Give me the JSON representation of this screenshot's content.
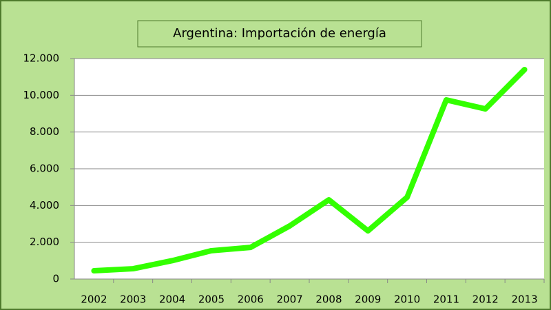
{
  "chart_data": {
    "type": "line",
    "title": "Argentina: Importación de energía",
    "categories": [
      "2002",
      "2003",
      "2004",
      "2005",
      "2006",
      "2007",
      "2008",
      "2009",
      "2010",
      "2011",
      "2012",
      "2013"
    ],
    "series": [
      {
        "name": "Importación de energía",
        "color": "#33ff00",
        "values": [
          450,
          560,
          1000,
          1540,
          1720,
          2890,
          4310,
          2620,
          4450,
          9750,
          9260,
          11400
        ]
      }
    ],
    "ylim": [
      0,
      12000
    ],
    "yticks": [
      0,
      {
        "value": 2000,
        "label": "2.000"
      },
      {
        "value": 4000,
        "label": "4.000"
      },
      {
        "value": 6000,
        "label": "6.000"
      },
      {
        "value": 8000,
        "label": "8.000"
      },
      {
        "value": 10000,
        "label": "10.000"
      },
      {
        "value": 12000,
        "label": "12.000"
      }
    ],
    "grid": true
  }
}
